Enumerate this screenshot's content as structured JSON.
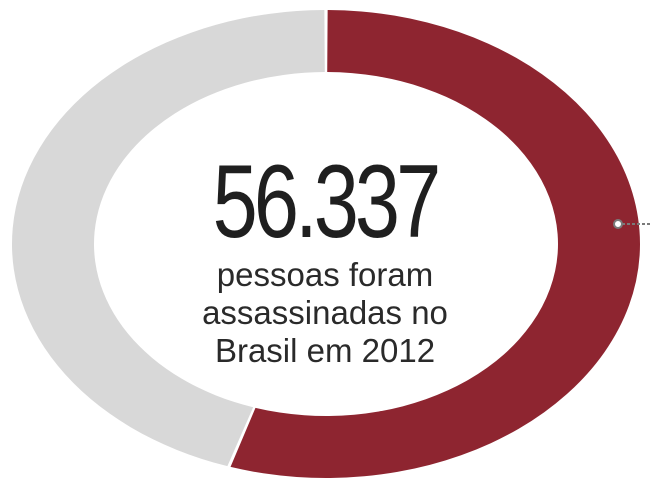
{
  "chart_data": {
    "type": "pie",
    "variant": "donut",
    "slices": [
      {
        "value": 55,
        "color": "#8e2530"
      },
      {
        "value": 45,
        "color": "#d8d8d8"
      }
    ]
  },
  "center": {
    "number": "56.337",
    "caption_line1": "pessoas foram",
    "caption_line2": "assassinadas no",
    "caption_line3": "Brasil em 2012"
  },
  "colors": {
    "accent": "#8e2530",
    "remainder": "#d8d8d8",
    "leader_line": "#7a7a7a"
  }
}
